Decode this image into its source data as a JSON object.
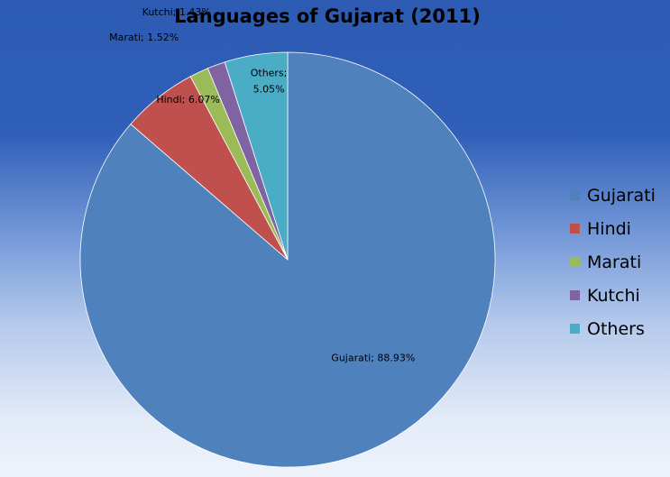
{
  "chart_data": {
    "type": "pie",
    "title": "Languages of Gujarat (2011)",
    "categories": [
      "Gujarati",
      "Hindi",
      "Marati",
      "Kutchi",
      "Others"
    ],
    "values": [
      88.93,
      6.07,
      1.52,
      1.43,
      5.05
    ],
    "colors": [
      "#4f81bd",
      "#c0504d",
      "#9bbb59",
      "#8064a2",
      "#4bacc6"
    ],
    "data_labels": [
      [
        "Gujarati; 88.93%"
      ],
      [
        "Hindi; 6.07%"
      ],
      [
        "Marati; 1.52%"
      ],
      [
        "Kutchi; 1.43%"
      ],
      [
        "Others;",
        "5.05%"
      ]
    ],
    "legend_position": "right"
  }
}
